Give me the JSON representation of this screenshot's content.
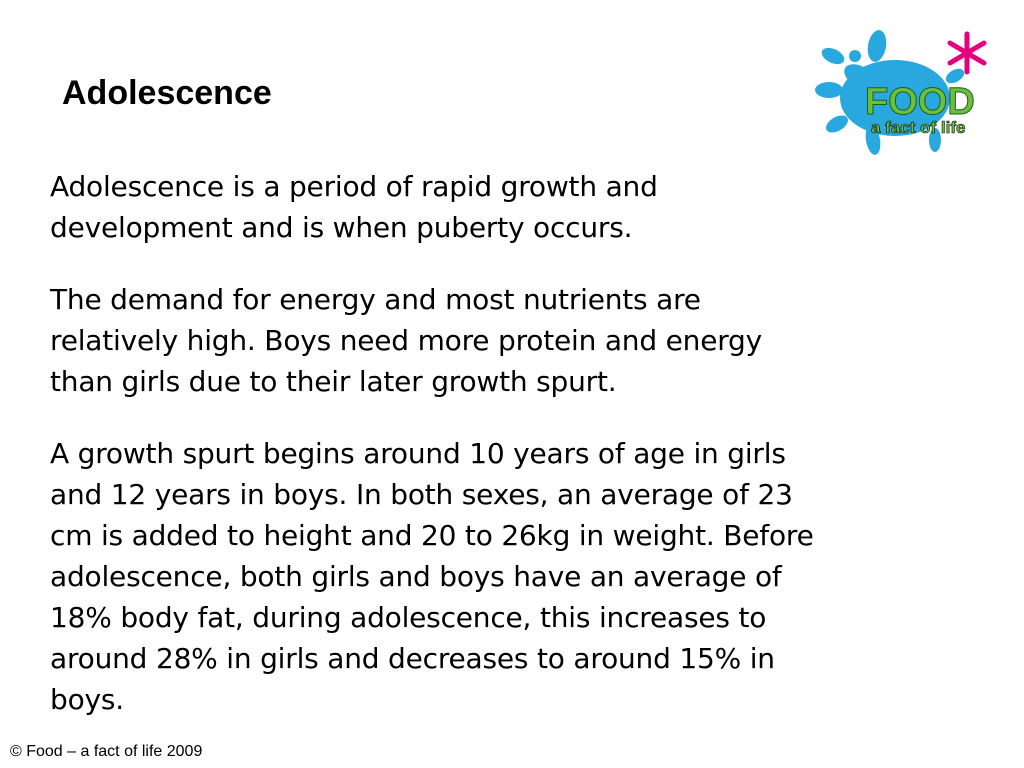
{
  "header": {
    "title": "Adolescence"
  },
  "logo": {
    "word": "FOOD",
    "tagline": "a fact of life"
  },
  "paragraphs": [
    [
      "Adolescence is a period of rapid growth and",
      "development and is when puberty occurs."
    ],
    [
      "The demand for energy and most nutrients are",
      "relatively high. Boys need more protein and energy",
      "than girls due to their later growth spurt."
    ],
    [
      "A growth spurt begins around 10 years of age in girls",
      "and 12 years in boys. In both sexes, an average of 23",
      "cm is added to height and 20 to 26kg in weight. Before",
      "adolescence, both girls and boys have an average of",
      "18% body fat, during adolescence, this increases to",
      "around 28% in girls and decreases to around 15% in",
      "boys."
    ]
  ],
  "footer": "© Food – a fact of life 2009"
}
